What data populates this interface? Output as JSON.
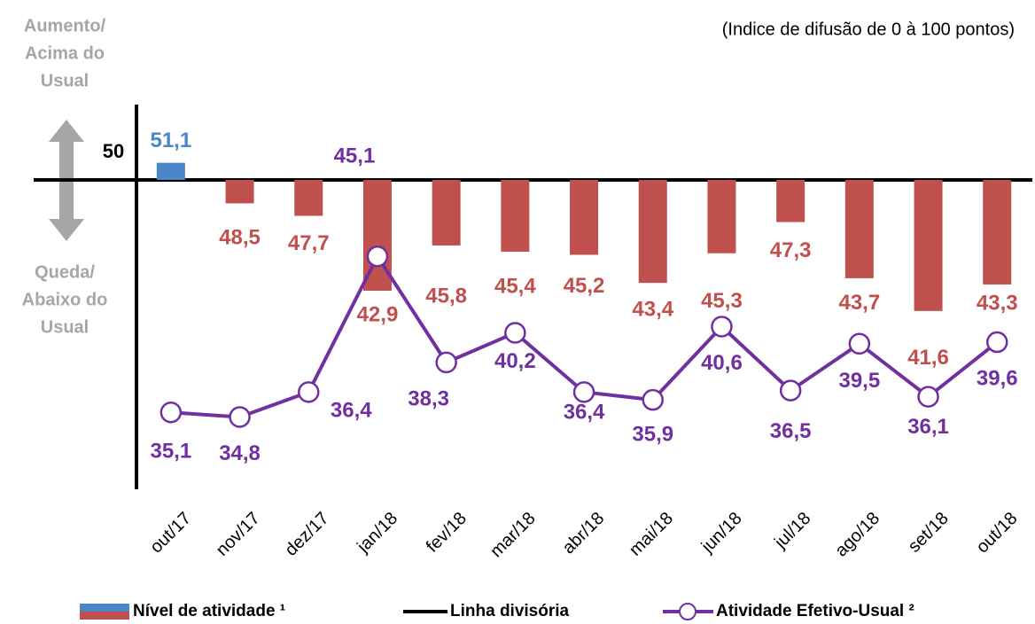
{
  "chart_data": {
    "type": "bar_line",
    "note": "(Indice de difusão de 0 à 100 pontos)",
    "annotations": {
      "above": [
        "Aumento/",
        "Acima do",
        "Usual"
      ],
      "below": [
        "Queda/",
        "Abaixo do",
        "Usual"
      ]
    },
    "categories": [
      "out/17",
      "nov/17",
      "dez/17",
      "jan/18",
      "fev/18",
      "mar/18",
      "abr/18",
      "mai/18",
      "jun/18",
      "jul/18",
      "ago/18",
      "set/18",
      "out/18"
    ],
    "ylim": [
      30,
      55
    ],
    "yticks": [
      50
    ],
    "divider": {
      "name": "Linha divisória",
      "color": "#000000"
    },
    "series": [
      {
        "name": "Nível de atividade ¹",
        "color": "#c0504d",
        "color_above": "#4a86c8",
        "values": [
          51.1,
          48.5,
          47.7,
          42.9,
          45.8,
          45.4,
          45.2,
          43.4,
          45.3,
          47.3,
          43.7,
          41.6,
          43.3
        ],
        "value_labels": [
          "51,1",
          "48,5",
          "47,7",
          "42,9",
          "45,8",
          "45,4",
          "45,2",
          "43,4",
          "45,3",
          "47,3",
          "43,7",
          "41,6",
          "43,3"
        ]
      },
      {
        "name": "Atividade Efetivo-Usual ²",
        "color": "#7030a0",
        "values": [
          35.1,
          34.8,
          36.4,
          45.1,
          38.3,
          40.2,
          36.4,
          35.9,
          40.6,
          36.5,
          39.5,
          36.1,
          39.6
        ],
        "value_labels": [
          "35,1",
          "34,8",
          "36,4",
          "45,1",
          "38,3",
          "40,2",
          "36,4",
          "35,9",
          "40,6",
          "36,5",
          "39,5",
          "36,1",
          "39,6"
        ]
      }
    ]
  }
}
